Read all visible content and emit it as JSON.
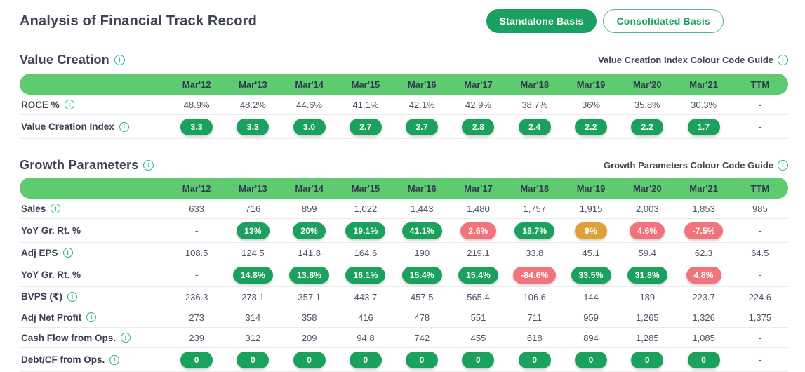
{
  "header": {
    "title": "Analysis of Financial Track Record",
    "standalone_label": "Standalone Basis",
    "consolidated_label": "Consolidated Basis"
  },
  "colors": {
    "pill_green": "#1ba15e",
    "pill_red": "#f1737b",
    "pill_amber": "#dfa135",
    "header_bar_green": "#5ecb71",
    "accent_button_green": "#1aa160",
    "info_icon_green": "#2ab57a"
  },
  "columns": [
    "Mar'12",
    "Mar'13",
    "Mar'14",
    "Mar'15",
    "Mar'16",
    "Mar'17",
    "Mar'18",
    "Mar'19",
    "Mar'20",
    "Mar'21",
    "TTM"
  ],
  "value_creation": {
    "title": "Value Creation",
    "guide_label": "Value Creation Index Colour Code Guide",
    "rows": [
      {
        "label": "ROCE %",
        "info": true,
        "cells": [
          {
            "t": "48.9%"
          },
          {
            "t": "48.2%"
          },
          {
            "t": "44.6%"
          },
          {
            "t": "41.1%"
          },
          {
            "t": "42.1%"
          },
          {
            "t": "42.9%"
          },
          {
            "t": "38.7%"
          },
          {
            "t": "36%"
          },
          {
            "t": "35.8%"
          },
          {
            "t": "30.3%"
          },
          {
            "t": "-"
          }
        ]
      },
      {
        "label": "Value Creation Index",
        "info": true,
        "cells": [
          {
            "t": "3.3",
            "pill": "green"
          },
          {
            "t": "3.3",
            "pill": "green"
          },
          {
            "t": "3.0",
            "pill": "green"
          },
          {
            "t": "2.7",
            "pill": "green"
          },
          {
            "t": "2.7",
            "pill": "green"
          },
          {
            "t": "2.8",
            "pill": "green"
          },
          {
            "t": "2.4",
            "pill": "green"
          },
          {
            "t": "2.2",
            "pill": "green"
          },
          {
            "t": "2.2",
            "pill": "green"
          },
          {
            "t": "1.7",
            "pill": "green"
          },
          {
            "t": "-"
          }
        ]
      }
    ]
  },
  "growth_parameters": {
    "title": "Growth Parameters",
    "guide_label": "Growth Parameters Colour Code Guide",
    "rows": [
      {
        "label": "Sales",
        "info": true,
        "cells": [
          {
            "t": "633"
          },
          {
            "t": "716"
          },
          {
            "t": "859"
          },
          {
            "t": "1,022"
          },
          {
            "t": "1,443"
          },
          {
            "t": "1,480"
          },
          {
            "t": "1,757"
          },
          {
            "t": "1,915"
          },
          {
            "t": "2,003"
          },
          {
            "t": "1,853"
          },
          {
            "t": "985"
          }
        ]
      },
      {
        "label": "YoY Gr. Rt. %",
        "info": false,
        "cells": [
          {
            "t": "-"
          },
          {
            "t": "13%",
            "pill": "green"
          },
          {
            "t": "20%",
            "pill": "green"
          },
          {
            "t": "19.1%",
            "pill": "green"
          },
          {
            "t": "41.1%",
            "pill": "green"
          },
          {
            "t": "2.6%",
            "pill": "red"
          },
          {
            "t": "18.7%",
            "pill": "green"
          },
          {
            "t": "9%",
            "pill": "amber"
          },
          {
            "t": "4.6%",
            "pill": "red"
          },
          {
            "t": "-7.5%",
            "pill": "red"
          },
          {
            "t": "-"
          }
        ]
      },
      {
        "label": "Adj EPS",
        "info": true,
        "cells": [
          {
            "t": "108.5"
          },
          {
            "t": "124.5"
          },
          {
            "t": "141.8"
          },
          {
            "t": "164.6"
          },
          {
            "t": "190"
          },
          {
            "t": "219.1"
          },
          {
            "t": "33.8"
          },
          {
            "t": "45.1"
          },
          {
            "t": "59.4"
          },
          {
            "t": "62.3"
          },
          {
            "t": "64.5"
          }
        ]
      },
      {
        "label": "YoY Gr. Rt. %",
        "info": false,
        "cells": [
          {
            "t": "-"
          },
          {
            "t": "14.8%",
            "pill": "green"
          },
          {
            "t": "13.8%",
            "pill": "green"
          },
          {
            "t": "16.1%",
            "pill": "green"
          },
          {
            "t": "15.4%",
            "pill": "green"
          },
          {
            "t": "15.4%",
            "pill": "green"
          },
          {
            "t": "-84.6%",
            "pill": "red"
          },
          {
            "t": "33.5%",
            "pill": "green"
          },
          {
            "t": "31.8%",
            "pill": "green"
          },
          {
            "t": "4.8%",
            "pill": "red"
          },
          {
            "t": "-"
          }
        ]
      },
      {
        "label": "BVPS (₹)",
        "info": true,
        "cells": [
          {
            "t": "236.3"
          },
          {
            "t": "278.1"
          },
          {
            "t": "357.1"
          },
          {
            "t": "443.7"
          },
          {
            "t": "457.5"
          },
          {
            "t": "565.4"
          },
          {
            "t": "106.6"
          },
          {
            "t": "144"
          },
          {
            "t": "189"
          },
          {
            "t": "223.7"
          },
          {
            "t": "224.6"
          }
        ]
      },
      {
        "label": "Adj Net Profit",
        "info": true,
        "cells": [
          {
            "t": "273"
          },
          {
            "t": "314"
          },
          {
            "t": "358"
          },
          {
            "t": "416"
          },
          {
            "t": "478"
          },
          {
            "t": "551"
          },
          {
            "t": "711"
          },
          {
            "t": "959"
          },
          {
            "t": "1,265"
          },
          {
            "t": "1,326"
          },
          {
            "t": "1,375"
          }
        ]
      },
      {
        "label": "Cash Flow from Ops.",
        "info": true,
        "cells": [
          {
            "t": "239"
          },
          {
            "t": "312"
          },
          {
            "t": "209"
          },
          {
            "t": "94.8"
          },
          {
            "t": "742"
          },
          {
            "t": "455"
          },
          {
            "t": "618"
          },
          {
            "t": "894"
          },
          {
            "t": "1,285"
          },
          {
            "t": "1,085"
          },
          {
            "t": "-"
          }
        ]
      },
      {
        "label": "Debt/CF from Ops.",
        "info": true,
        "cells": [
          {
            "t": "0",
            "pill": "green"
          },
          {
            "t": "0",
            "pill": "green"
          },
          {
            "t": "0",
            "pill": "green"
          },
          {
            "t": "0",
            "pill": "green"
          },
          {
            "t": "0",
            "pill": "green"
          },
          {
            "t": "0",
            "pill": "green"
          },
          {
            "t": "0",
            "pill": "green"
          },
          {
            "t": "0",
            "pill": "green"
          },
          {
            "t": "0",
            "pill": "green"
          },
          {
            "t": "0",
            "pill": "green"
          },
          {
            "t": "-"
          }
        ]
      }
    ]
  }
}
